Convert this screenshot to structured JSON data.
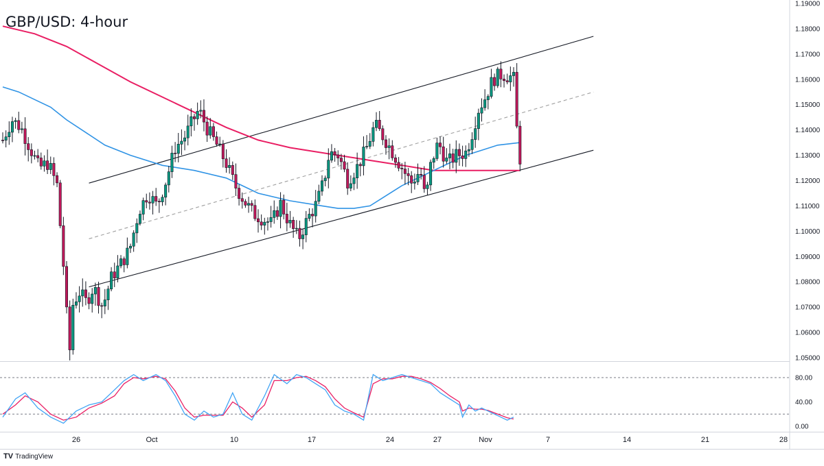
{
  "title": "GBP/USD: 4-hour",
  "brand": {
    "logo": "TV",
    "name": "TradingView"
  },
  "colors": {
    "bull": "#089981",
    "bear": "#c2185b",
    "wick": "#131722",
    "ma_fast": "#2f93e5",
    "ma_slow": "#e91e63",
    "stoch_k": "#42a5f5",
    "stoch_d": "#e91e63",
    "channel": "#131722",
    "midline": "#9e9e9e"
  },
  "chart_data": [
    {
      "type": "candlestick",
      "title": "GBP/USD: 4-hour",
      "y_axis": {
        "ticks": [
          "1.19000",
          "1.18000",
          "1.17000",
          "1.16000",
          "1.15000",
          "1.14000",
          "1.13000",
          "1.12000",
          "1.11000",
          "1.10000",
          "1.09000",
          "1.08000",
          "1.07000",
          "1.06000",
          "1.05000"
        ],
        "range": [
          1.0485,
          1.1905
        ]
      },
      "x_axis": {
        "ticks": [
          "26",
          "Oct",
          "10",
          "17",
          "24",
          "27",
          "Nov",
          "7",
          "14",
          "21",
          "28"
        ],
        "range": [
          0,
          285
        ]
      },
      "anchors": [
        [
          0,
          1.136
        ],
        [
          5,
          1.144
        ],
        [
          10,
          1.141
        ],
        [
          15,
          1.133
        ],
        [
          20,
          1.125
        ],
        [
          25,
          1.127
        ],
        [
          30,
          1.118
        ],
        [
          33,
          1.09
        ],
        [
          35,
          1.074
        ],
        [
          36,
          1.038
        ],
        [
          38,
          1.07
        ],
        [
          42,
          1.076
        ],
        [
          46,
          1.072
        ],
        [
          50,
          1.078
        ],
        [
          55,
          1.07
        ],
        [
          60,
          1.082
        ],
        [
          65,
          1.087
        ],
        [
          70,
          1.093
        ],
        [
          75,
          1.108
        ],
        [
          80,
          1.115
        ],
        [
          85,
          1.11
        ],
        [
          90,
          1.12
        ],
        [
          95,
          1.133
        ],
        [
          100,
          1.137
        ],
        [
          105,
          1.144
        ],
        [
          108,
          1.148
        ],
        [
          113,
          1.14
        ],
        [
          118,
          1.134
        ],
        [
          123,
          1.127
        ],
        [
          128,
          1.118
        ],
        [
          133,
          1.112
        ],
        [
          138,
          1.107
        ],
        [
          143,
          1.105
        ],
        [
          148,
          1.103
        ],
        [
          153,
          1.111
        ],
        [
          158,
          1.103
        ],
        [
          163,
          1.097
        ],
        [
          168,
          1.105
        ],
        [
          173,
          1.111
        ],
        [
          177,
          1.12
        ],
        [
          180,
          1.131
        ],
        [
          185,
          1.13
        ],
        [
          190,
          1.12
        ],
        [
          195,
          1.125
        ],
        [
          200,
          1.132
        ],
        [
          205,
          1.142
        ],
        [
          210,
          1.137
        ],
        [
          215,
          1.131
        ],
        [
          220,
          1.125
        ],
        [
          225,
          1.119
        ],
        [
          230,
          1.124
        ],
        [
          233,
          1.112
        ],
        [
          236,
          1.127
        ],
        [
          240,
          1.135
        ],
        [
          245,
          1.127
        ],
        [
          250,
          1.13
        ],
        [
          255,
          1.131
        ],
        [
          258,
          1.137
        ],
        [
          262,
          1.148
        ],
        [
          266,
          1.153
        ],
        [
          270,
          1.16
        ],
        [
          275,
          1.162
        ],
        [
          280,
          1.161
        ],
        [
          285,
          1.158
        ]
      ],
      "ma_fast": [
        [
          0,
          1.157
        ],
        [
          5,
          1.155
        ],
        [
          10,
          1.152
        ],
        [
          15,
          1.149
        ],
        [
          20,
          1.144
        ],
        [
          26,
          1.139
        ],
        [
          32,
          1.134
        ],
        [
          40,
          1.13
        ],
        [
          50,
          1.126
        ],
        [
          60,
          1.124
        ],
        [
          70,
          1.121
        ],
        [
          75,
          1.118
        ],
        [
          80,
          1.115
        ],
        [
          90,
          1.112
        ],
        [
          100,
          1.11
        ],
        [
          105,
          1.109
        ],
        [
          110,
          1.109
        ],
        [
          115,
          1.11
        ],
        [
          120,
          1.114
        ],
        [
          125,
          1.118
        ],
        [
          130,
          1.121
        ],
        [
          135,
          1.124
        ],
        [
          140,
          1.127
        ],
        [
          145,
          1.13
        ],
        [
          150,
          1.132
        ],
        [
          155,
          1.134
        ],
        [
          162,
          1.135
        ]
      ],
      "ma_slow": [
        [
          0,
          1.181
        ],
        [
          10,
          1.178
        ],
        [
          20,
          1.173
        ],
        [
          30,
          1.166
        ],
        [
          40,
          1.159
        ],
        [
          50,
          1.153
        ],
        [
          60,
          1.147
        ],
        [
          70,
          1.141
        ],
        [
          80,
          1.136
        ],
        [
          90,
          1.133
        ],
        [
          100,
          1.131
        ],
        [
          105,
          1.13
        ],
        [
          110,
          1.129
        ],
        [
          115,
          1.128
        ],
        [
          120,
          1.127
        ],
        [
          125,
          1.126
        ],
        [
          130,
          1.125
        ],
        [
          135,
          1.124
        ],
        [
          145,
          1.124
        ],
        [
          150,
          1.124
        ],
        [
          155,
          1.124
        ],
        [
          162,
          1.124
        ]
      ],
      "channel_upper": [
        [
          27,
          1.119
        ],
        [
          185,
          1.177
        ]
      ],
      "channel_lower": [
        [
          27,
          1.078
        ],
        [
          185,
          1.132
        ]
      ],
      "channel_mid": [
        [
          27,
          1.097
        ],
        [
          185,
          1.155
        ]
      ]
    },
    {
      "type": "line",
      "name": "Stochastic",
      "y_axis": {
        "ticks": [
          "80.00",
          "40.00",
          "0.00"
        ],
        "range": [
          -2,
          100
        ],
        "levels": [
          80,
          20
        ]
      },
      "k_anchors": [
        [
          0,
          15
        ],
        [
          4,
          45
        ],
        [
          7,
          55
        ],
        [
          11,
          30
        ],
        [
          15,
          15
        ],
        [
          19,
          5
        ],
        [
          23,
          25
        ],
        [
          27,
          35
        ],
        [
          31,
          40
        ],
        [
          35,
          60
        ],
        [
          38,
          75
        ],
        [
          41,
          85
        ],
        [
          44,
          75
        ],
        [
          48,
          85
        ],
        [
          51,
          75
        ],
        [
          54,
          50
        ],
        [
          57,
          20
        ],
        [
          60,
          10
        ],
        [
          63,
          25
        ],
        [
          66,
          15
        ],
        [
          69,
          20
        ],
        [
          72,
          55
        ],
        [
          75,
          20
        ],
        [
          78,
          10
        ],
        [
          82,
          50
        ],
        [
          85,
          85
        ],
        [
          89,
          70
        ],
        [
          92,
          85
        ],
        [
          95,
          80
        ],
        [
          98,
          70
        ],
        [
          101,
          60
        ],
        [
          104,
          35
        ],
        [
          107,
          25
        ],
        [
          110,
          20
        ],
        [
          113,
          10
        ],
        [
          116,
          85
        ],
        [
          119,
          75
        ],
        [
          122,
          80
        ],
        [
          125,
          85
        ],
        [
          128,
          80
        ],
        [
          131,
          75
        ],
        [
          134,
          70
        ],
        [
          137,
          55
        ],
        [
          140,
          45
        ],
        [
          143,
          35
        ],
        [
          144,
          15
        ],
        [
          146,
          35
        ],
        [
          148,
          25
        ],
        [
          150,
          30
        ],
        [
          152,
          25
        ],
        [
          154,
          20
        ],
        [
          156,
          15
        ],
        [
          158,
          10
        ],
        [
          160,
          15
        ]
      ],
      "d_anchors": [
        [
          0,
          20
        ],
        [
          4,
          35
        ],
        [
          7,
          50
        ],
        [
          11,
          40
        ],
        [
          15,
          20
        ],
        [
          19,
          10
        ],
        [
          23,
          15
        ],
        [
          27,
          30
        ],
        [
          31,
          38
        ],
        [
          35,
          50
        ],
        [
          38,
          70
        ],
        [
          41,
          80
        ],
        [
          44,
          78
        ],
        [
          48,
          82
        ],
        [
          51,
          78
        ],
        [
          54,
          58
        ],
        [
          57,
          30
        ],
        [
          60,
          15
        ],
        [
          63,
          18
        ],
        [
          66,
          18
        ],
        [
          69,
          18
        ],
        [
          72,
          40
        ],
        [
          75,
          30
        ],
        [
          78,
          15
        ],
        [
          82,
          35
        ],
        [
          85,
          75
        ],
        [
          89,
          75
        ],
        [
          92,
          80
        ],
        [
          95,
          82
        ],
        [
          98,
          75
        ],
        [
          101,
          65
        ],
        [
          104,
          45
        ],
        [
          107,
          30
        ],
        [
          110,
          22
        ],
        [
          113,
          15
        ],
        [
          116,
          70
        ],
        [
          119,
          78
        ],
        [
          122,
          78
        ],
        [
          125,
          82
        ],
        [
          128,
          82
        ],
        [
          131,
          78
        ],
        [
          134,
          72
        ],
        [
          137,
          62
        ],
        [
          140,
          50
        ],
        [
          143,
          40
        ],
        [
          144,
          25
        ],
        [
          146,
          30
        ],
        [
          148,
          28
        ],
        [
          150,
          28
        ],
        [
          152,
          26
        ],
        [
          154,
          22
        ],
        [
          156,
          18
        ],
        [
          158,
          14
        ],
        [
          160,
          12
        ]
      ]
    }
  ]
}
